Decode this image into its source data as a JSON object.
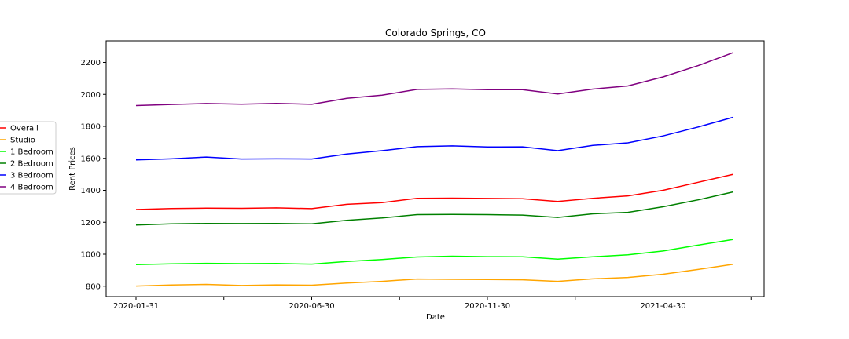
{
  "chart_data": {
    "type": "line",
    "title": "Colorado Springs, CO",
    "xlabel": "Date",
    "ylabel": "Rent Prices",
    "x": [
      "2020-01-31",
      "2020-02-29",
      "2020-03-31",
      "2020-04-30",
      "2020-05-31",
      "2020-06-30",
      "2020-07-31",
      "2020-08-31",
      "2020-09-30",
      "2020-10-31",
      "2020-11-30",
      "2020-12-31",
      "2021-01-31",
      "2021-02-28",
      "2021-03-31",
      "2021-04-30",
      "2021-05-31",
      "2021-06-30"
    ],
    "x_tick_labels": [
      "2020-01-31",
      "2020-06-30",
      "2020-11-30",
      "2021-04-30"
    ],
    "y_ticks": [
      800,
      1000,
      1200,
      1400,
      1600,
      1800,
      2000,
      2200
    ],
    "ylim": [
      735,
      2335
    ],
    "grid": false,
    "legend_position": "left-outside",
    "series": [
      {
        "name": "Overall",
        "color": "#ff0000",
        "values": [
          1280,
          1286,
          1288,
          1287,
          1290,
          1285,
          1312,
          1323,
          1350,
          1351,
          1349,
          1347,
          1330,
          1350,
          1365,
          1400,
          1450,
          1500
        ]
      },
      {
        "name": "Studio",
        "color": "#ffa500",
        "values": [
          801,
          807,
          811,
          804,
          808,
          806,
          820,
          830,
          845,
          843,
          842,
          840,
          830,
          846,
          855,
          875,
          905,
          937
        ]
      },
      {
        "name": "1 Bedroom",
        "color": "#00ff00",
        "values": [
          935,
          940,
          943,
          941,
          942,
          938,
          955,
          967,
          983,
          988,
          985,
          984,
          969,
          984,
          996,
          1020,
          1057,
          1093
        ]
      },
      {
        "name": "2 Bedroom",
        "color": "#008000",
        "values": [
          1183,
          1190,
          1193,
          1192,
          1193,
          1190,
          1212,
          1227,
          1248,
          1249,
          1248,
          1245,
          1230,
          1253,
          1262,
          1297,
          1340,
          1390
        ]
      },
      {
        "name": "3 Bedroom",
        "color": "#0000ff",
        "values": [
          1590,
          1597,
          1608,
          1596,
          1597,
          1596,
          1627,
          1648,
          1673,
          1678,
          1671,
          1672,
          1648,
          1681,
          1697,
          1740,
          1796,
          1857
        ]
      },
      {
        "name": "4 Bedroom",
        "color": "#800080",
        "values": [
          1930,
          1937,
          1943,
          1939,
          1944,
          1938,
          1975,
          1995,
          2031,
          2034,
          2029,
          2029,
          2002,
          2033,
          2053,
          2109,
          2180,
          2262
        ]
      }
    ]
  }
}
